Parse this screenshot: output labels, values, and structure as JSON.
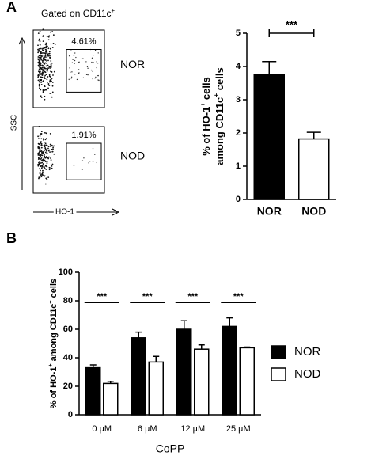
{
  "panel_labels": [
    "A",
    "B"
  ],
  "flow": {
    "gate_title": [
      "Gated on CD11c",
      "+"
    ],
    "y_axis_label": "SSC",
    "x_axis_label": "HO-1",
    "plots": [
      {
        "gate_label": "4.61%",
        "sample": "NOR"
      },
      {
        "gate_label": "1.91%",
        "sample": "NOD"
      }
    ]
  },
  "chart_data": [
    {
      "type": "bar",
      "ylabel_lines": [
        [
          "% of HO-1",
          "+",
          " cells"
        ],
        [
          "among CD11c",
          "+",
          " cells"
        ]
      ],
      "categories": [
        "NOR",
        "NOD"
      ],
      "values": [
        3.75,
        1.82
      ],
      "errors": [
        0.4,
        0.2
      ],
      "colors": [
        "#000000",
        "#ffffff"
      ],
      "ylim": [
        0,
        5
      ],
      "yticks": [
        0,
        1,
        2,
        3,
        4,
        5
      ],
      "significance": "***"
    },
    {
      "type": "grouped_bar",
      "ylabel": [
        "% of HO-1",
        "+",
        " among CD11c",
        "+",
        " cells"
      ],
      "xlabel": "CoPP",
      "categories": [
        "0 µM",
        "6 µM",
        "12 µM",
        "25 µM"
      ],
      "series": [
        {
          "name": "NOR",
          "color": "#000000",
          "values": [
            33,
            54,
            60,
            62
          ],
          "errors": [
            2,
            4,
            6,
            6
          ]
        },
        {
          "name": "NOD",
          "color": "#ffffff",
          "values": [
            22,
            37,
            46,
            47
          ],
          "errors": [
            1.5,
            4,
            3,
            0.5
          ]
        }
      ],
      "ylim": [
        0,
        100
      ],
      "yticks": [
        0,
        20,
        40,
        60,
        80,
        100
      ],
      "significance": [
        "***",
        "***",
        "***",
        "***"
      ],
      "legend": "right"
    }
  ]
}
